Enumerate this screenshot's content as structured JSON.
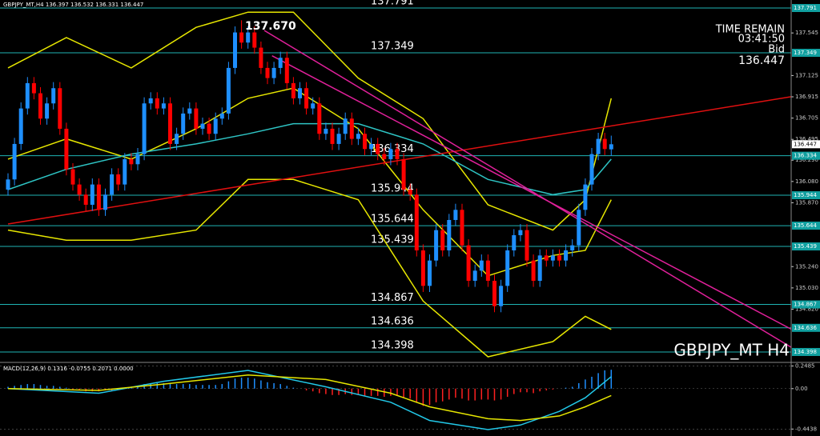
{
  "chart_data": [
    {
      "type": "candlestick",
      "title": "GBPJPY_MT,H4",
      "peak_label": "137.670",
      "info": [
        "TIME REMAIN",
        "03:41:50",
        "Bid"
      ],
      "footer": "GBPJPY_MT H4",
      "open": [
        136.0,
        136.1,
        136.45,
        136.8,
        137.05,
        136.95,
        136.7,
        136.85,
        137.0,
        136.6,
        136.2,
        136.05,
        135.95,
        135.85,
        136.05,
        135.8,
        135.95,
        136.15,
        136.05,
        136.3,
        136.25,
        136.35,
        136.85,
        136.9,
        136.8,
        136.85,
        136.45,
        136.55,
        136.75,
        136.8,
        136.6,
        136.65,
        136.55,
        136.7,
        136.75,
        137.2,
        137.55,
        137.45,
        137.55,
        137.4,
        137.2,
        137.1,
        137.2,
        137.3,
        137.05,
        136.9,
        137.0,
        136.8,
        136.85,
        136.55,
        136.6,
        136.45,
        136.55,
        136.7,
        136.5,
        136.55,
        136.4,
        136.45,
        136.35,
        136.3,
        136.4,
        136.3,
        136.0,
        135.95,
        135.4,
        135.05,
        135.3,
        135.6,
        135.4,
        135.7,
        135.8,
        135.45,
        135.1,
        135.2,
        135.3,
        135.1,
        134.85,
        135.05,
        135.4,
        135.55,
        135.6,
        135.3,
        135.1,
        135.35,
        135.3,
        135.35,
        135.3,
        135.4,
        135.45,
        135.8,
        136.05,
        136.35,
        136.5,
        136.397
      ],
      "high": [
        136.16,
        136.51,
        136.86,
        137.11,
        137.11,
        137.01,
        136.91,
        137.06,
        137.06,
        136.66,
        136.26,
        136.11,
        136.01,
        136.11,
        136.11,
        136.01,
        136.21,
        136.21,
        136.36,
        136.36,
        136.41,
        136.91,
        136.96,
        136.96,
        136.91,
        136.91,
        136.61,
        136.81,
        136.86,
        136.86,
        136.71,
        136.71,
        136.76,
        136.81,
        137.26,
        137.61,
        137.67,
        137.61,
        137.61,
        137.46,
        137.26,
        137.26,
        137.36,
        137.36,
        137.11,
        137.06,
        137.06,
        136.91,
        136.91,
        136.66,
        136.66,
        136.61,
        136.76,
        136.76,
        136.61,
        136.61,
        136.51,
        136.51,
        136.41,
        136.46,
        136.46,
        136.36,
        136.06,
        136.01,
        135.46,
        135.36,
        135.66,
        135.66,
        135.76,
        135.86,
        135.86,
        135.51,
        135.26,
        135.36,
        135.36,
        135.16,
        135.11,
        135.46,
        135.61,
        135.66,
        135.66,
        135.36,
        135.41,
        135.41,
        135.41,
        135.41,
        135.46,
        135.51,
        135.86,
        136.11,
        136.41,
        136.56,
        136.56,
        136.532
      ],
      "low": [
        135.94,
        136.04,
        136.39,
        136.74,
        136.89,
        136.64,
        136.64,
        136.79,
        136.54,
        136.14,
        135.99,
        135.89,
        135.79,
        135.79,
        135.74,
        135.74,
        135.89,
        135.99,
        135.99,
        136.19,
        136.19,
        136.29,
        136.79,
        136.74,
        136.74,
        136.39,
        136.39,
        136.49,
        136.69,
        136.54,
        136.54,
        136.49,
        136.49,
        136.64,
        136.69,
        137.14,
        137.39,
        137.39,
        137.34,
        137.14,
        137.04,
        137.04,
        137.14,
        136.99,
        136.84,
        136.84,
        136.74,
        136.74,
        136.49,
        136.49,
        136.39,
        136.39,
        136.49,
        136.44,
        136.44,
        136.34,
        136.34,
        136.29,
        136.24,
        136.24,
        136.24,
        135.94,
        135.89,
        135.34,
        134.99,
        134.99,
        135.24,
        135.34,
        135.34,
        135.64,
        135.39,
        135.04,
        135.04,
        135.14,
        135.04,
        134.79,
        134.79,
        134.99,
        135.34,
        135.49,
        135.24,
        135.04,
        135.04,
        135.24,
        135.24,
        135.24,
        135.24,
        135.34,
        135.39,
        135.74,
        135.99,
        136.29,
        136.34,
        136.331
      ],
      "close": [
        136.1,
        136.45,
        136.8,
        137.05,
        136.95,
        136.7,
        136.85,
        137.0,
        136.6,
        136.2,
        136.05,
        135.95,
        135.85,
        136.05,
        135.8,
        135.95,
        136.15,
        136.05,
        136.3,
        136.25,
        136.35,
        136.85,
        136.9,
        136.8,
        136.85,
        136.45,
        136.55,
        136.75,
        136.8,
        136.6,
        136.65,
        136.55,
        136.7,
        136.75,
        137.2,
        137.55,
        137.45,
        137.55,
        137.4,
        137.2,
        137.1,
        137.2,
        137.3,
        137.05,
        136.9,
        137.0,
        136.8,
        136.85,
        136.55,
        136.6,
        136.45,
        136.55,
        136.7,
        136.5,
        136.55,
        136.4,
        136.45,
        136.35,
        136.3,
        136.4,
        136.3,
        136.0,
        135.95,
        135.4,
        135.05,
        135.3,
        135.6,
        135.4,
        135.7,
        135.8,
        135.45,
        135.1,
        135.2,
        135.3,
        135.1,
        134.85,
        135.05,
        135.4,
        135.55,
        135.6,
        135.3,
        135.1,
        135.35,
        135.3,
        135.35,
        135.3,
        135.4,
        135.45,
        135.8,
        136.05,
        136.35,
        136.5,
        136.4,
        136.447
      ],
      "up_color": "#1e8fff",
      "down_color": "#ff0000",
      "ylim": [
        134.303,
        137.87
      ],
      "yticks": [
        137.545,
        137.125,
        136.915,
        136.705,
        136.495,
        {
          "value": 136.29,
          "label": "136.290"
        },
        {
          "value": 136.08,
          "label": "136.080"
        },
        {
          "value": 135.87,
          "label": "135.870"
        },
        {
          "value": 135.24,
          "label": "135.240"
        },
        {
          "value": 135.03,
          "label": "135.030"
        },
        {
          "value": 134.82,
          "label": "134.820"
        }
      ],
      "levels": [
        137.791,
        137.349,
        136.334,
        135.944,
        135.644,
        135.439,
        134.867,
        134.636,
        134.398
      ],
      "level_color": "#1fb5b5",
      "lines": [
        {
          "color": "#e6e600",
          "x": [
            0,
            9,
            19,
            29,
            37,
            44,
            54,
            64,
            74,
            84,
            89,
            93
          ],
          "values": [
            137.2,
            137.5,
            137.2,
            137.6,
            137.75,
            137.75,
            137.1,
            136.7,
            135.85,
            135.6,
            135.9,
            136.9
          ]
        },
        {
          "color": "#e6e600",
          "x": [
            0,
            9,
            19,
            29,
            37,
            44,
            54,
            64,
            74,
            84,
            89,
            93
          ],
          "values": [
            135.6,
            135.5,
            135.5,
            135.6,
            136.1,
            136.1,
            135.9,
            134.9,
            134.35,
            134.5,
            134.75,
            134.62
          ]
        },
        {
          "color": "#e6e600",
          "x": [
            0,
            9,
            19,
            29,
            37,
            44,
            54,
            64,
            74,
            84,
            89,
            93
          ],
          "values": [
            136.3,
            136.5,
            136.3,
            136.6,
            136.9,
            137.0,
            136.6,
            135.8,
            135.15,
            135.35,
            135.4,
            135.9
          ]
        },
        {
          "color": "#2ec4c4",
          "x": [
            0,
            9,
            19,
            29,
            37,
            44,
            54,
            64,
            74,
            84,
            89,
            93
          ],
          "values": [
            136.0,
            136.2,
            136.35,
            136.45,
            136.55,
            136.65,
            136.65,
            136.45,
            136.1,
            135.95,
            136.0,
            136.3
          ]
        },
        {
          "color": "#e01010",
          "x": [
            0,
            125
          ],
          "values": [
            135.66,
            136.96
          ]
        },
        {
          "color": "#e0209a",
          "x": [
            40.7,
            125
          ],
          "values": [
            137.32,
            134.48
          ]
        },
        {
          "color": "#e0209a",
          "x": [
            39.5,
            125
          ],
          "values": [
            137.57,
            134.28
          ]
        }
      ]
    },
    {
      "type": "macd",
      "title": "MACD(12,26,9)",
      "readout": [
        0.1316,
        -0.0755,
        0.2071,
        {
          "value": 0,
          "label": "0.0000"
        }
      ],
      "histogram": [
        0.02,
        0.03,
        0.04,
        0.05,
        0.05,
        0.04,
        0.03,
        0.03,
        0.02,
        0.01,
        -0.01,
        -0.02,
        -0.03,
        -0.03,
        -0.03,
        -0.02,
        -0.02,
        -0.01,
        0.01,
        0.02,
        0.03,
        0.05,
        0.06,
        0.06,
        0.06,
        0.05,
        0.05,
        0.05,
        0.05,
        0.04,
        0.04,
        0.04,
        0.04,
        0.05,
        0.08,
        0.11,
        0.12,
        0.12,
        0.11,
        0.09,
        0.07,
        0.06,
        0.05,
        0.03,
        0.01,
        0.0,
        -0.02,
        -0.03,
        -0.05,
        -0.06,
        -0.07,
        -0.07,
        -0.06,
        -0.07,
        -0.07,
        -0.08,
        -0.08,
        -0.08,
        -0.09,
        -0.08,
        -0.08,
        -0.1,
        -0.11,
        -0.15,
        -0.19,
        -0.18,
        -0.15,
        -0.14,
        -0.12,
        -0.1,
        -0.11,
        -0.13,
        -0.13,
        -0.12,
        -0.12,
        -0.13,
        -0.12,
        -0.09,
        -0.06,
        -0.04,
        -0.04,
        -0.05,
        -0.03,
        -0.02,
        -0.01,
        0.0,
        0.01,
        0.02,
        0.06,
        0.1,
        0.13,
        0.17,
        0.2,
        0.2071
      ],
      "up_color": "#1e8fff",
      "down_color": "#ff2020",
      "ylim": [
        -0.52,
        0.27
      ],
      "yticks": [
        0.2485,
        {
          "value": 0,
          "label": "0.00"
        },
        -0.4438
      ],
      "lines": [
        {
          "color": "#22c8e8",
          "x": [
            0,
            14,
            24,
            37,
            49,
            59,
            65,
            74,
            79,
            85,
            89,
            93
          ],
          "values": [
            0.0,
            -0.05,
            0.08,
            0.2,
            0.02,
            -0.15,
            -0.35,
            -0.45,
            -0.4,
            -0.25,
            -0.1,
            0.1316
          ]
        },
        {
          "color": "#e6e600",
          "x": [
            0,
            14,
            24,
            37,
            49,
            59,
            65,
            74,
            79,
            85,
            89,
            93
          ],
          "values": [
            0.0,
            -0.02,
            0.05,
            0.15,
            0.1,
            -0.05,
            -0.2,
            -0.33,
            -0.35,
            -0.3,
            -0.2,
            -0.0755
          ]
        }
      ]
    }
  ]
}
